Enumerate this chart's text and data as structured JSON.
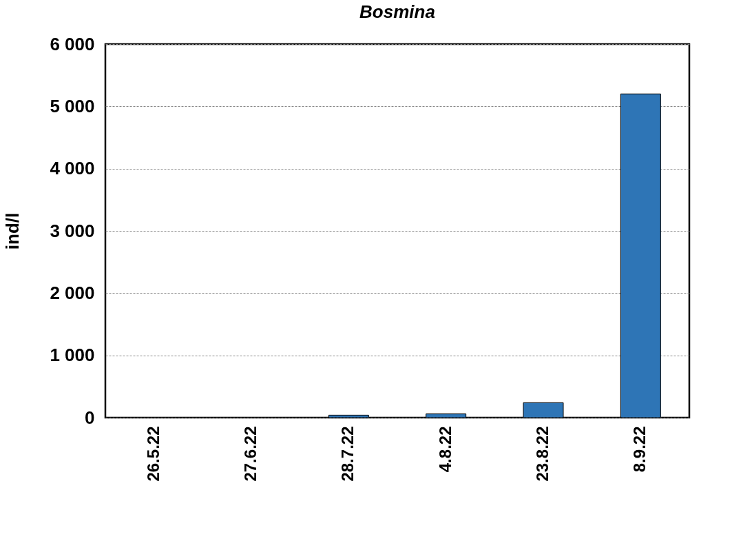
{
  "chart_data": {
    "type": "bar",
    "title": "Bosmina",
    "ylabel": "ind/l",
    "categories": [
      "26.5.22",
      "27.6.22",
      "28.7.22",
      "4.8.22",
      "23.8.22",
      "8.9.22"
    ],
    "values": [
      0,
      0,
      40,
      60,
      240,
      5200
    ],
    "color": "#2e75b6",
    "ylim": [
      0,
      6000
    ],
    "yticks": [
      {
        "value": 0,
        "label": "0"
      },
      {
        "value": 1000,
        "label": "1 000"
      },
      {
        "value": 2000,
        "label": "2 000"
      },
      {
        "value": 3000,
        "label": "3 000"
      },
      {
        "value": 4000,
        "label": "4 000"
      },
      {
        "value": 5000,
        "label": "5 000"
      },
      {
        "value": 6000,
        "label": "6 000"
      }
    ],
    "grid": "y"
  }
}
